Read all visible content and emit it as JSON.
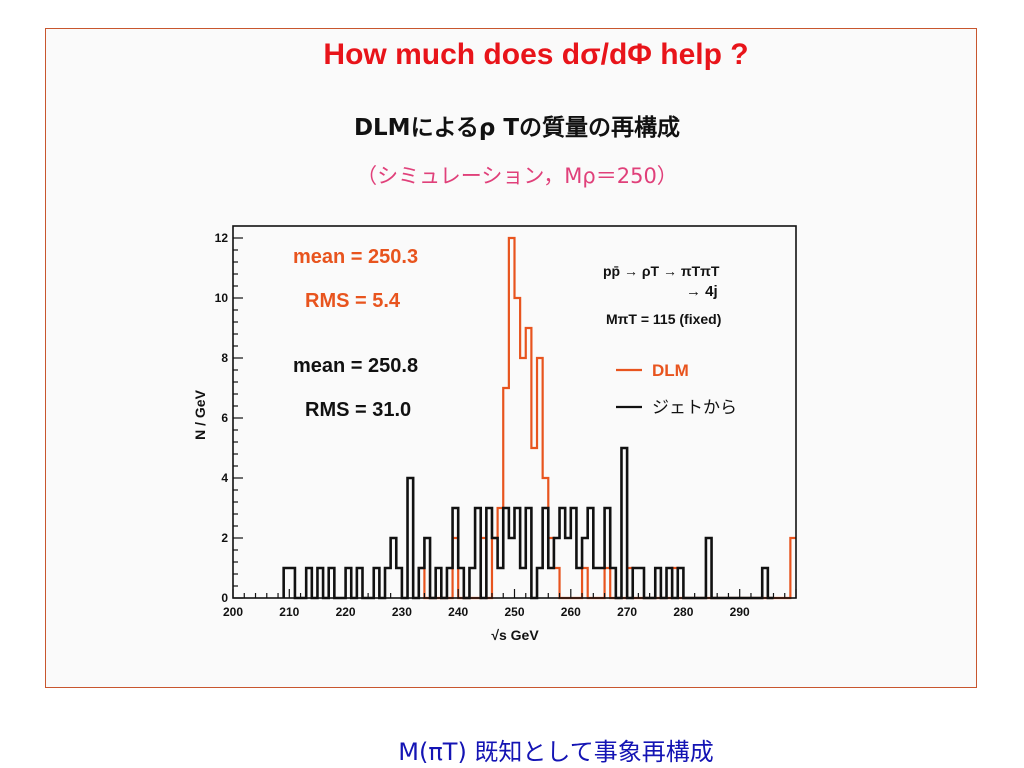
{
  "slide": {
    "title": "How much does dσ/dΦ help ?",
    "jp_title": "DLMによるρ Tの質量の再構成",
    "jp_subtitle": "（シミュレーション，Mρ＝250）",
    "caption": "M(πT) 既知として事象再構成"
  },
  "chart_data": {
    "type": "line",
    "step": true,
    "xlabel": "√s GeV",
    "ylabel": "N / GeV",
    "xlim": [
      200,
      300
    ],
    "ylim": [
      0,
      12.4
    ],
    "xticks": [
      200,
      210,
      220,
      230,
      240,
      250,
      260,
      270,
      280,
      290
    ],
    "yticks": [
      0,
      2,
      4,
      6,
      8,
      10,
      12
    ],
    "grid": false,
    "legend_position": "right",
    "process_lines": [
      "pp̄ → ρT → πTπT",
      "→ 4j",
      "MπT = 115 (fixed)"
    ],
    "series": [
      {
        "name": "DLM",
        "color": "#e8541e",
        "stats": [
          "mean = 250.3",
          "RMS = 5.4"
        ],
        "bins": [
          [
            233,
            1
          ],
          [
            234,
            0
          ],
          [
            238,
            0
          ],
          [
            239,
            2
          ],
          [
            240,
            0
          ],
          [
            243,
            0
          ],
          [
            244,
            2
          ],
          [
            245,
            0
          ],
          [
            246,
            2
          ],
          [
            247,
            3
          ],
          [
            248,
            7
          ],
          [
            249,
            12
          ],
          [
            250,
            10
          ],
          [
            251,
            8
          ],
          [
            252,
            9
          ],
          [
            253,
            5
          ],
          [
            254,
            8
          ],
          [
            255,
            4
          ],
          [
            256,
            2
          ],
          [
            257,
            1
          ],
          [
            258,
            0
          ],
          [
            262,
            1
          ],
          [
            263,
            0
          ],
          [
            266,
            1
          ],
          [
            267,
            0
          ],
          [
            270,
            1
          ],
          [
            271,
            0
          ],
          [
            278,
            1
          ],
          [
            279,
            0
          ],
          [
            299,
            2
          ],
          [
            300,
            2
          ]
        ]
      },
      {
        "name": "ジェトから",
        "color": "#111111",
        "stats": [
          "mean = 250.8",
          "RMS = 31.0"
        ],
        "bins": [
          [
            209,
            1
          ],
          [
            211,
            0
          ],
          [
            213,
            1
          ],
          [
            214,
            0
          ],
          [
            215,
            1
          ],
          [
            216,
            0
          ],
          [
            217,
            1
          ],
          [
            218,
            0
          ],
          [
            220,
            1
          ],
          [
            221,
            0
          ],
          [
            222,
            1
          ],
          [
            223,
            0
          ],
          [
            225,
            1
          ],
          [
            226,
            0
          ],
          [
            227,
            1
          ],
          [
            228,
            2
          ],
          [
            229,
            1
          ],
          [
            230,
            0
          ],
          [
            231,
            4
          ],
          [
            232,
            0
          ],
          [
            233,
            1
          ],
          [
            234,
            2
          ],
          [
            235,
            0
          ],
          [
            236,
            1
          ],
          [
            237,
            0
          ],
          [
            238,
            1
          ],
          [
            239,
            3
          ],
          [
            240,
            1
          ],
          [
            241,
            0
          ],
          [
            242,
            1
          ],
          [
            243,
            3
          ],
          [
            244,
            0
          ],
          [
            245,
            3
          ],
          [
            246,
            2
          ],
          [
            247,
            1
          ],
          [
            248,
            3
          ],
          [
            249,
            2
          ],
          [
            250,
            3
          ],
          [
            251,
            1
          ],
          [
            252,
            3
          ],
          [
            253,
            0
          ],
          [
            254,
            1
          ],
          [
            255,
            3
          ],
          [
            256,
            1
          ],
          [
            257,
            2
          ],
          [
            258,
            3
          ],
          [
            259,
            2
          ],
          [
            260,
            3
          ],
          [
            261,
            1
          ],
          [
            262,
            2
          ],
          [
            263,
            3
          ],
          [
            264,
            1
          ],
          [
            265,
            1
          ],
          [
            266,
            3
          ],
          [
            267,
            1
          ],
          [
            268,
            0
          ],
          [
            269,
            5
          ],
          [
            270,
            0
          ],
          [
            271,
            1
          ],
          [
            272,
            1
          ],
          [
            273,
            0
          ],
          [
            275,
            1
          ],
          [
            276,
            0
          ],
          [
            277,
            1
          ],
          [
            278,
            0
          ],
          [
            279,
            1
          ],
          [
            280,
            0
          ],
          [
            284,
            2
          ],
          [
            285,
            0
          ],
          [
            294,
            1
          ],
          [
            295,
            0
          ]
        ]
      }
    ]
  }
}
